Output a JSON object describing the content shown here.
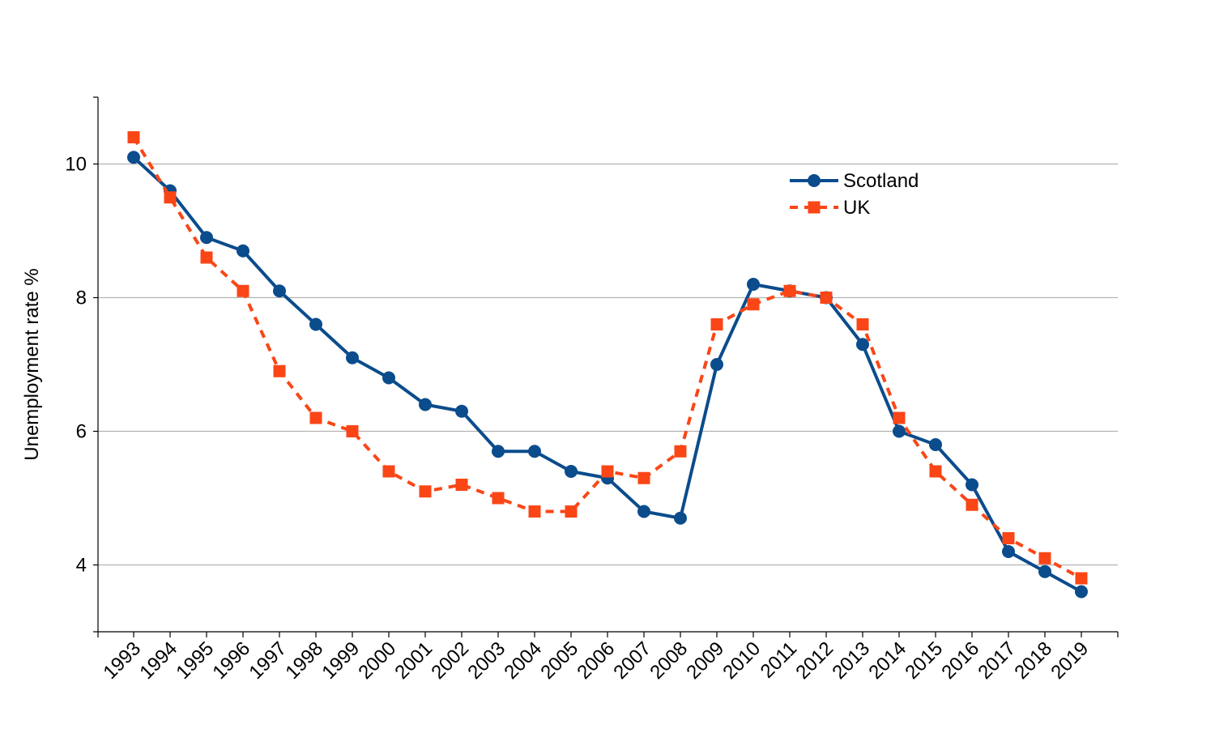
{
  "chart_data": {
    "type": "line",
    "title": "",
    "xlabel": "",
    "ylabel": "Unemployment rate %",
    "x": [
      "1993",
      "1994",
      "1995",
      "1996",
      "1997",
      "1998",
      "1999",
      "2000",
      "2001",
      "2002",
      "2003",
      "2004",
      "2005",
      "2006",
      "2007",
      "2008",
      "2009",
      "2010",
      "2011",
      "2012",
      "2013",
      "2014",
      "2015",
      "2016",
      "2017",
      "2018",
      "2019"
    ],
    "ylim": [
      3,
      11
    ],
    "yticks": [
      4,
      6,
      8,
      10
    ],
    "grid": "horizontal",
    "legend_position": "top-right",
    "series": [
      {
        "name": "Scotland",
        "color": "#0b4c8c",
        "line_style": "solid",
        "marker": "circle",
        "values": [
          10.1,
          9.6,
          8.9,
          8.7,
          8.1,
          7.6,
          7.1,
          6.8,
          6.4,
          6.3,
          5.7,
          5.7,
          5.4,
          5.3,
          4.8,
          4.7,
          7.0,
          8.2,
          8.1,
          8.0,
          7.3,
          6.0,
          5.8,
          5.2,
          4.2,
          3.9,
          3.6
        ]
      },
      {
        "name": "UK",
        "color": "#fa4616",
        "line_style": "dashed",
        "marker": "square",
        "values": [
          10.4,
          9.5,
          8.6,
          8.1,
          6.9,
          6.2,
          6.0,
          5.4,
          5.1,
          5.2,
          5.0,
          4.8,
          4.8,
          5.4,
          5.3,
          5.7,
          7.6,
          7.9,
          8.1,
          8.0,
          7.6,
          6.2,
          5.4,
          4.9,
          4.4,
          4.1,
          3.8
        ]
      }
    ]
  }
}
